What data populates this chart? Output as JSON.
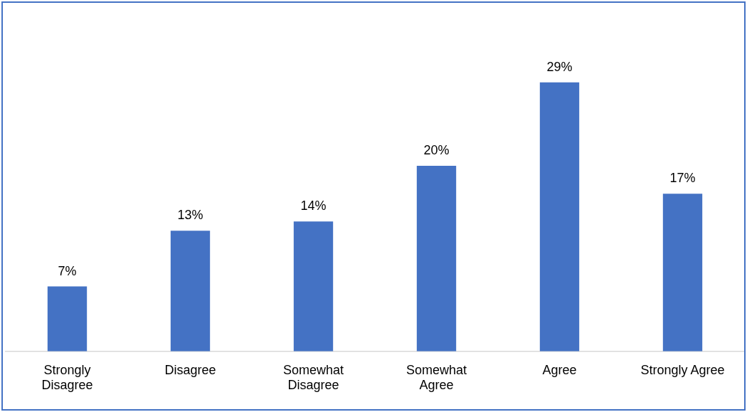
{
  "chart_data": {
    "type": "bar",
    "categories": [
      "Strongly Disagree",
      "Disagree",
      "Somewhat Disagree",
      "Somewhat Agree",
      "Agree",
      "Strongly Agree"
    ],
    "values": [
      7,
      13,
      14,
      20,
      29,
      17
    ],
    "value_labels": [
      "7%",
      "13%",
      "14%",
      "20%",
      "29%",
      "17%"
    ],
    "color": "#4472c4",
    "grid": false,
    "legend": false
  }
}
